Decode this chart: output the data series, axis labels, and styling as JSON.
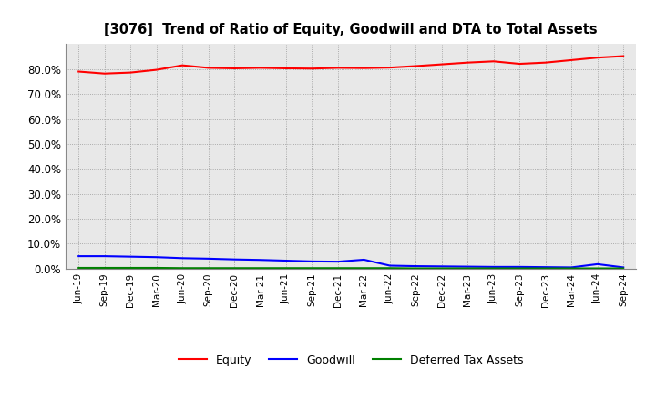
{
  "title": "[3076]  Trend of Ratio of Equity, Goodwill and DTA to Total Assets",
  "x_labels": [
    "Jun-19",
    "Sep-19",
    "Dec-19",
    "Mar-20",
    "Jun-20",
    "Sep-20",
    "Dec-20",
    "Mar-21",
    "Jun-21",
    "Sep-21",
    "Dec-21",
    "Mar-22",
    "Jun-22",
    "Sep-22",
    "Dec-22",
    "Mar-23",
    "Jun-23",
    "Sep-23",
    "Dec-23",
    "Mar-24",
    "Jun-24",
    "Sep-24"
  ],
  "equity": [
    79.0,
    78.2,
    78.6,
    79.7,
    81.5,
    80.5,
    80.3,
    80.5,
    80.3,
    80.2,
    80.5,
    80.4,
    80.6,
    81.2,
    81.9,
    82.6,
    83.1,
    82.1,
    82.6,
    83.6,
    84.6,
    85.2
  ],
  "goodwill": [
    5.0,
    5.0,
    4.8,
    4.6,
    4.2,
    4.0,
    3.7,
    3.5,
    3.2,
    2.9,
    2.8,
    3.6,
    1.2,
    1.0,
    0.9,
    0.8,
    0.7,
    0.7,
    0.6,
    0.5,
    1.8,
    0.5
  ],
  "dta": [
    0.3,
    0.3,
    0.3,
    0.3,
    0.2,
    0.2,
    0.2,
    0.2,
    0.2,
    0.2,
    0.2,
    0.2,
    0.2,
    0.1,
    0.1,
    0.1,
    0.1,
    0.1,
    0.1,
    0.1,
    0.1,
    0.1
  ],
  "equity_color": "#ff0000",
  "goodwill_color": "#0000ff",
  "dta_color": "#008000",
  "background_color": "#ffffff",
  "plot_bg_color": "#e8e8e8",
  "grid_color": "#999999",
  "ylim": [
    0,
    90
  ],
  "yticks": [
    0,
    10,
    20,
    30,
    40,
    50,
    60,
    70,
    80
  ],
  "legend_labels": [
    "Equity",
    "Goodwill",
    "Deferred Tax Assets"
  ]
}
